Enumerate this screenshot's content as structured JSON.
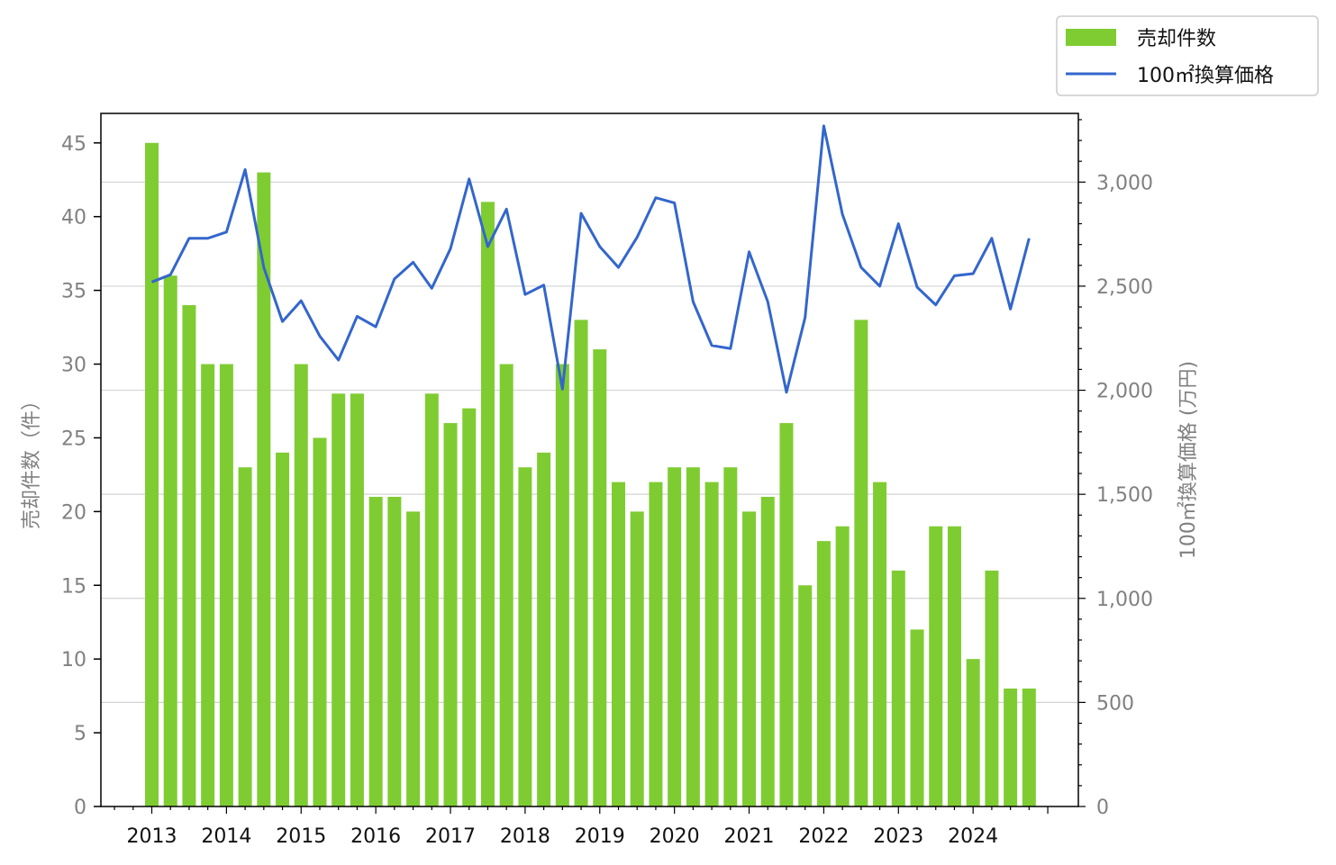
{
  "chart_data": {
    "type": "bar+line",
    "title": "",
    "x_tick_labels": [
      "2013",
      "2014",
      "2015",
      "2016",
      "2017",
      "2018",
      "2019",
      "2020",
      "2021",
      "2022",
      "2023",
      "2024"
    ],
    "x_start_year": 2013,
    "periods_per_year": 4,
    "left_axis": {
      "label": "売却件数（件）",
      "ylim": [
        0,
        47
      ],
      "ticks": [
        0,
        5,
        10,
        15,
        20,
        25,
        30,
        35,
        40,
        45
      ],
      "tick_labels": [
        "0",
        "5",
        "10",
        "15",
        "20",
        "25",
        "30",
        "35",
        "40",
        "45"
      ]
    },
    "right_axis": {
      "label": "100㎡換算価格 (万円)",
      "ylim": [
        0,
        3330
      ],
      "ticks": [
        0,
        500,
        1000,
        1500,
        2000,
        2500,
        3000
      ],
      "tick_labels": [
        "0",
        "500",
        "1,000",
        "1,500",
        "2,000",
        "2,500",
        "3,000"
      ],
      "minor_step": 100
    },
    "grid": "right-axis major ticks, horizontal",
    "legend": {
      "placement": "top-right, outside plot"
    },
    "series": [
      {
        "name": "売却件数",
        "kind": "bar",
        "axis": "left",
        "color": "#7fcc32",
        "values": [
          45,
          36,
          34,
          30,
          30,
          23,
          43,
          24,
          30,
          25,
          28,
          28,
          21,
          21,
          20,
          28,
          26,
          27,
          41,
          30,
          23,
          24,
          30,
          33,
          31,
          22,
          20,
          22,
          23,
          23,
          22,
          23,
          20,
          21,
          26,
          15,
          18,
          19,
          33,
          22,
          16,
          12,
          19,
          19,
          10,
          16,
          8,
          8
        ]
      },
      {
        "name": "100㎡換算価格",
        "kind": "line",
        "axis": "right",
        "color": "#3366cc",
        "values": [
          2520,
          2555,
          2730,
          2730,
          2760,
          3060,
          2590,
          2330,
          2430,
          2260,
          2145,
          2355,
          2305,
          2535,
          2615,
          2490,
          2680,
          3015,
          2690,
          2870,
          2460,
          2505,
          2005,
          2850,
          2690,
          2590,
          2735,
          2925,
          2900,
          2425,
          2215,
          2200,
          2665,
          2425,
          1990,
          2350,
          3270,
          2845,
          2590,
          2500,
          2800,
          2495,
          2410,
          2550,
          2560,
          2730,
          2390,
          2730
        ]
      }
    ]
  }
}
